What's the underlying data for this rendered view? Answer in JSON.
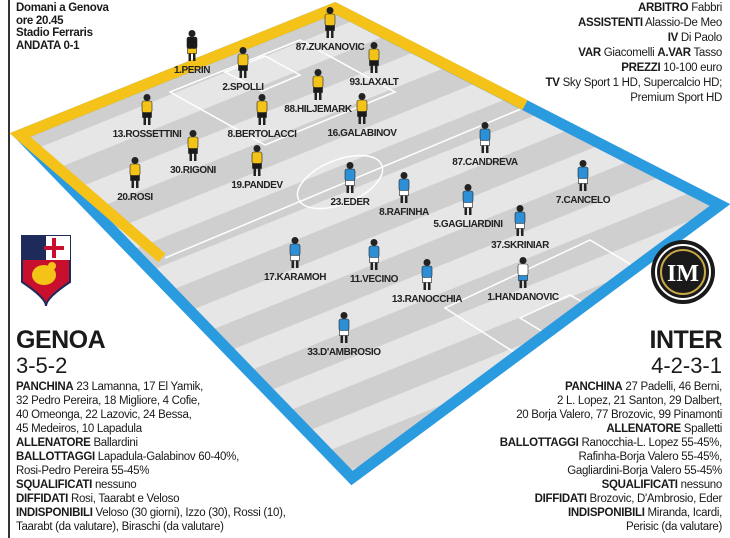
{
  "match": {
    "header_lines": [
      "Domani a Genova",
      "ore 20.45",
      "Stadio Ferraris",
      "ANDATA 0-1"
    ]
  },
  "officials": [
    {
      "label": "ARBITRO",
      "value": "Fabbri"
    },
    {
      "label": "ASSISTENTI",
      "value": "Alassio-De Meo"
    },
    {
      "label": "IV",
      "value": "Di Paolo"
    },
    {
      "label": "VAR",
      "value": "Giacomelli",
      "label2": "A.VAR",
      "value2": "Tasso"
    },
    {
      "label": "PREZZI",
      "value": "10-100 euro"
    },
    {
      "label": "TV",
      "value": "Sky Sport 1 HD, Supercalcio HD;"
    },
    {
      "label": "",
      "value": "Premium Sport HD"
    }
  ],
  "colors": {
    "genoa_shirt": "#f3c317",
    "inter_shirt": "#2d8fd5",
    "genoa_border": "#f5c21a",
    "inter_border": "#2b9be0",
    "pitch_light": "#e6e6e6",
    "pitch_dark": "#cfcfcf"
  },
  "genoa": {
    "name": "GENOA",
    "formation": "3-5-2",
    "logo": "genoa-crest",
    "players": [
      "1.PERIN",
      "2.SPOLLI",
      "87.ZUKANOVIC",
      "93.LAXALT",
      "88.HILJEMARK",
      "8.BERTOLACCI",
      "16.GALABINOV",
      "13.ROSSETTINI",
      "30.RIGONI",
      "19.PANDEV",
      "20.ROSI"
    ],
    "info": [
      {
        "label": "PANCHINA",
        "value": "23 Lamanna, 17 El Yamik,"
      },
      {
        "label": "",
        "value": "32 Pedro Pereira, 18 Migliore, 4 Cofie,"
      },
      {
        "label": "",
        "value": "40 Omeonga, 22 Lazovic, 24 Bessa,"
      },
      {
        "label": "",
        "value": "45 Medeiros, 10 Lapadula"
      },
      {
        "label": "ALLENATORE",
        "value": "Ballardini"
      },
      {
        "label": "BALLOTTAGGI",
        "value": "Lapadula-Galabinov 60-40%,"
      },
      {
        "label": "",
        "value": "Rosi-Pedro Pereira 55-45%"
      },
      {
        "label": "SQUALIFICATI",
        "value": "nessuno"
      },
      {
        "label": "DIFFIDATI",
        "value": "Rosi, Taarabt e Veloso"
      },
      {
        "label": "INDISPONIBILI",
        "value": "Veloso (30 giorni), Izzo (30), Rossi (10),"
      },
      {
        "label": "",
        "value": "Taarabt (da valutare), Biraschi (da valutare)"
      }
    ]
  },
  "inter": {
    "name": "INTER",
    "formation": "4-2-3-1",
    "logo": "inter-crest",
    "players": [
      "23.EDER",
      "8.RAFINHA",
      "87.CANDREVA",
      "7.CANCELO",
      "5.GAGLIARDINI",
      "37.SKRINIAR",
      "17.KARAMOH",
      "11.VECINO",
      "13.RANOCCHIA",
      "1.HANDANOVIC",
      "33.D'AMBROSIO"
    ],
    "info": [
      {
        "label": "PANCHINA",
        "value": "27 Padelli, 46 Berni,"
      },
      {
        "label": "",
        "value": "2 L. Lopez, 21 Santon, 29 Dalbert,"
      },
      {
        "label": "",
        "value": "20 Borja Valero, 77 Brozovic, 99 Pinamonti"
      },
      {
        "label": "ALLENATORE",
        "value": "Spalletti"
      },
      {
        "label": "BALLOTTAGGI",
        "value": "Ranocchia-L. Lopez 55-45%,"
      },
      {
        "label": "",
        "value": "Rafinha-Borja Valero 55-45%,"
      },
      {
        "label": "",
        "value": "Gagliardini-Borja Valero 55-45%"
      },
      {
        "label": "SQUALIFICATI",
        "value": "nessuno"
      },
      {
        "label": "DIFFIDATI",
        "value": "Brozovic, D'Ambrosio, Eder"
      },
      {
        "label": "INDISPONIBILI",
        "value": "Miranda, Icardi,"
      },
      {
        "label": "",
        "value": "Perisic (da valutare)"
      }
    ]
  }
}
